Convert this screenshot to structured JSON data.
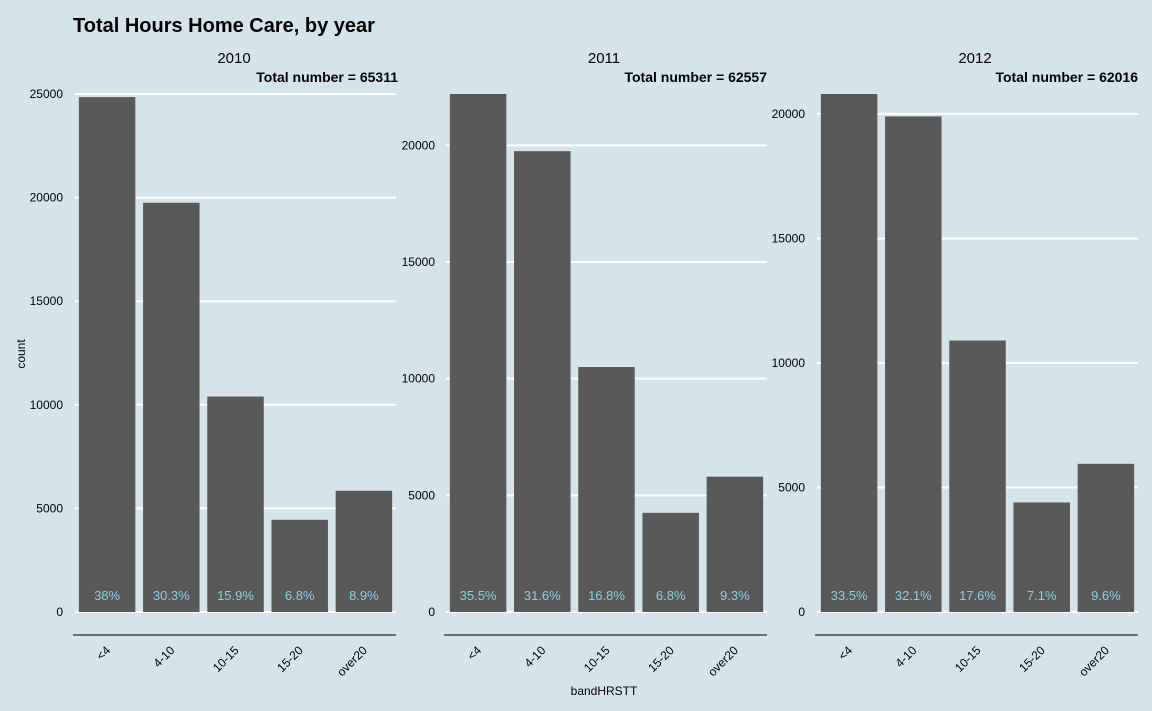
{
  "chart_data": {
    "type": "bar",
    "title": "Total Hours Home Care, by year",
    "xlabel": "bandHRSTT",
    "ylabel": "count",
    "categories": [
      "<4",
      "4-10",
      "10-15",
      "15-20",
      "over20"
    ],
    "grid": "horizontal",
    "bar_color": "#595959",
    "label_color": "#8ccde8",
    "background": "#d5e4eb",
    "facets": [
      {
        "name": "2010",
        "total_label": "Total number = 65311",
        "values": [
          24850,
          19750,
          10400,
          4450,
          5850
        ],
        "percent_labels": [
          "38%",
          "30.3%",
          "15.9%",
          "6.8%",
          "8.9%"
        ],
        "yticks": [
          0,
          5000,
          10000,
          15000,
          20000,
          25000
        ],
        "ylim": [
          0,
          25000
        ]
      },
      {
        "name": "2011",
        "total_label": "Total number = 62557",
        "values": [
          22200,
          19750,
          10500,
          4250,
          5800
        ],
        "percent_labels": [
          "35.5%",
          "31.6%",
          "16.8%",
          "6.8%",
          "9.3%"
        ],
        "yticks": [
          0,
          5000,
          10000,
          15000,
          20000
        ],
        "ylim": [
          0,
          22200
        ]
      },
      {
        "name": "2012",
        "total_label": "Total number = 62016",
        "values": [
          20800,
          19900,
          10900,
          4400,
          5950
        ],
        "percent_labels": [
          "33.5%",
          "32.1%",
          "17.6%",
          "7.1%",
          "9.6%"
        ],
        "yticks": [
          0,
          5000,
          10000,
          15000,
          20000
        ],
        "ylim": [
          0,
          20800
        ]
      }
    ]
  }
}
